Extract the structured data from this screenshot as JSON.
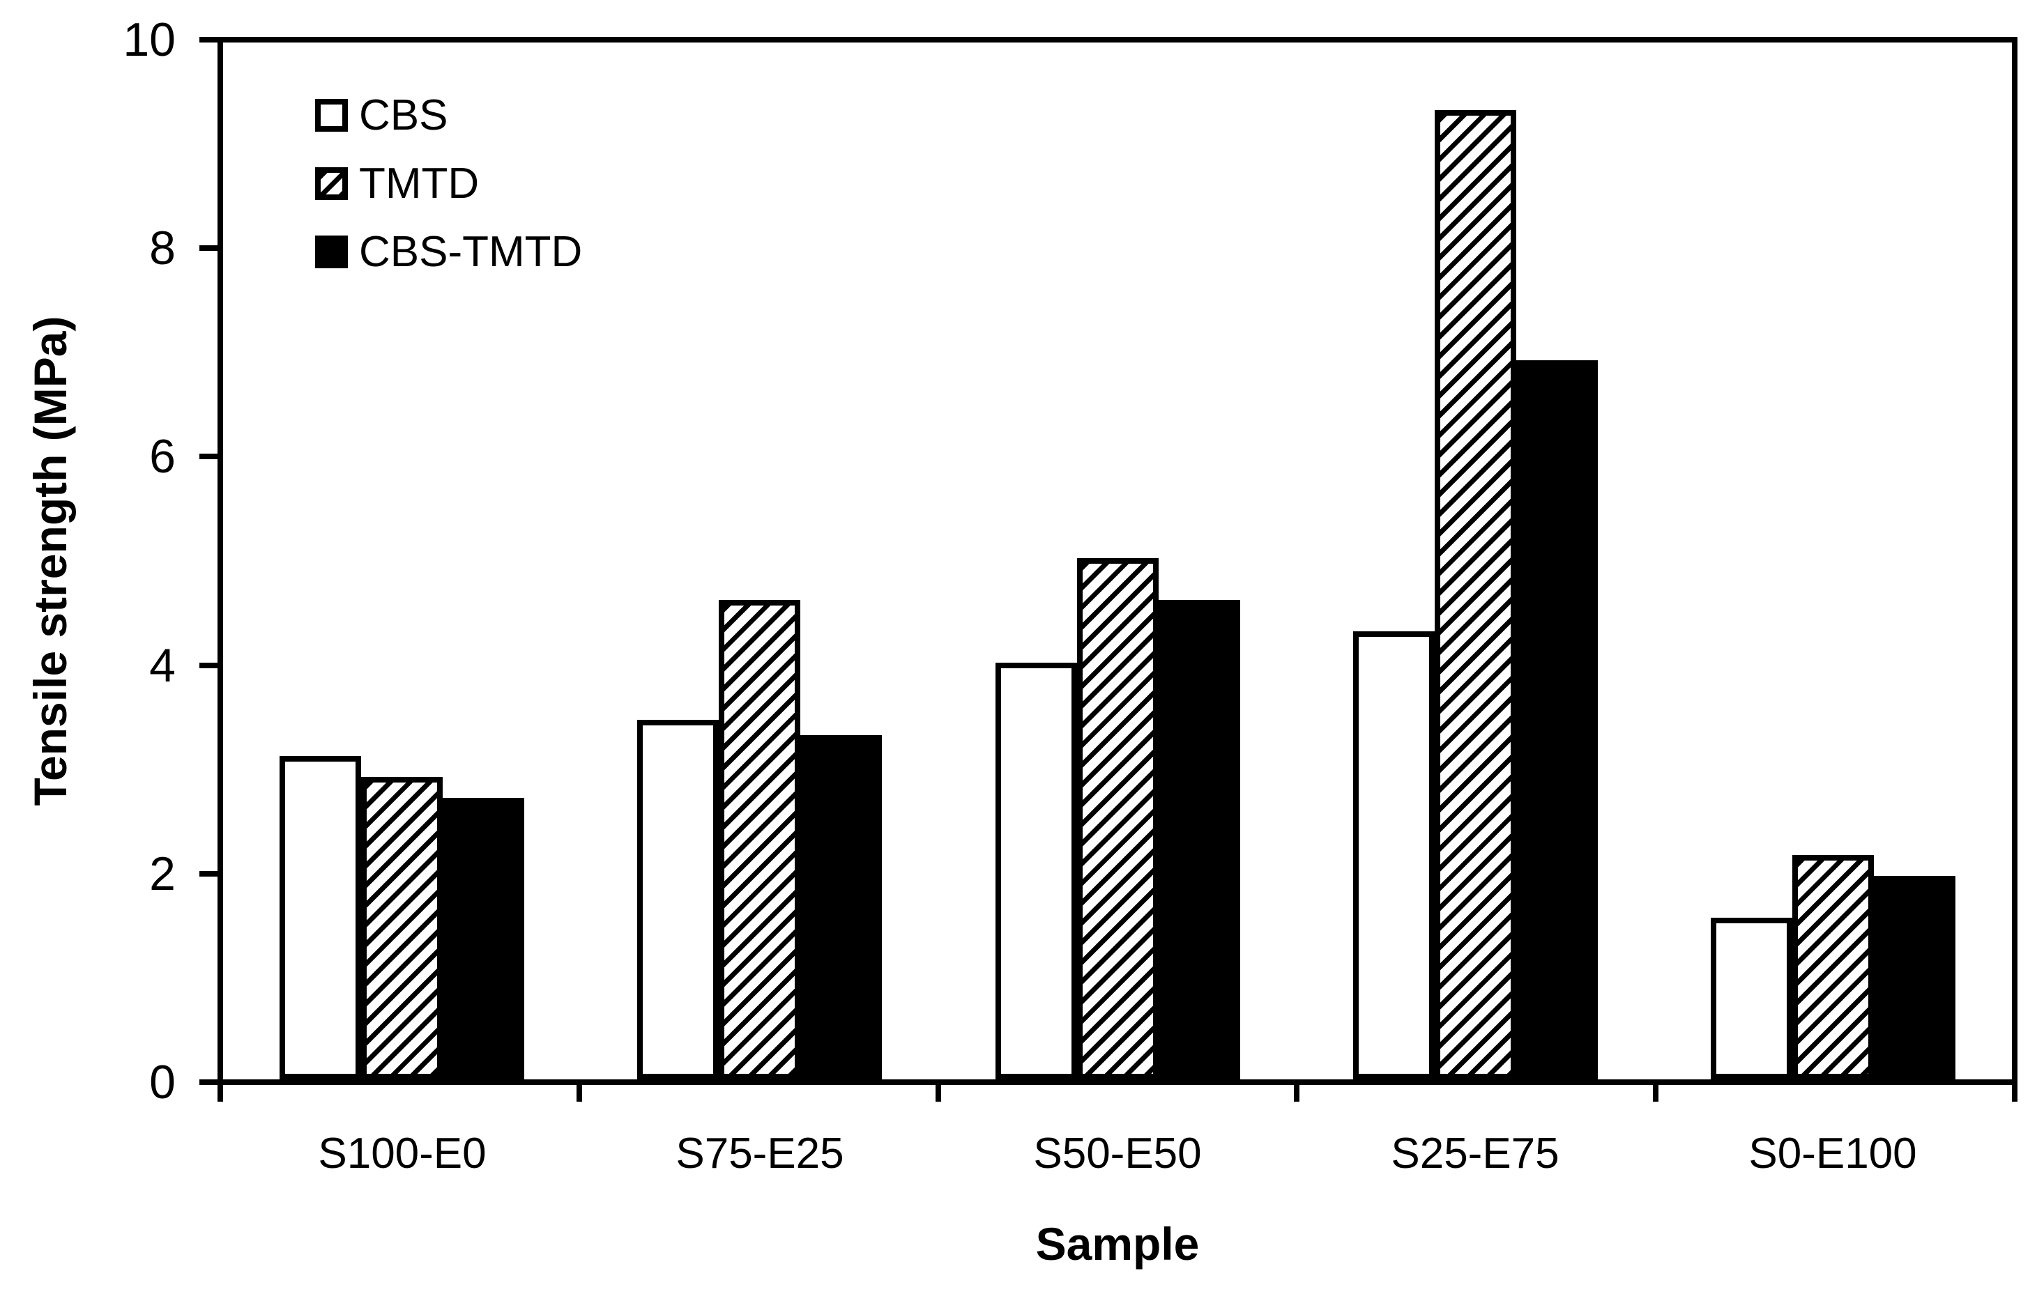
{
  "figure": {
    "background": "#ffffff",
    "foreground": "#000000"
  },
  "chart_data": {
    "type": "bar",
    "title": "",
    "categories": [
      "S100-E0",
      "S75-E25",
      "S50-E50",
      "S25-E75",
      "S0-E100"
    ],
    "series": [
      {
        "name": "CBS",
        "fill": "white",
        "values": [
          3.1,
          3.45,
          4.0,
          4.3,
          1.55
        ]
      },
      {
        "name": "TMTD",
        "fill": "hatched",
        "values": [
          2.9,
          4.6,
          5.0,
          9.3,
          2.15
        ]
      },
      {
        "name": "CBS-TMTD",
        "fill": "black",
        "values": [
          2.7,
          3.3,
          4.6,
          6.9,
          1.95
        ]
      }
    ],
    "xlabel": "Sample",
    "ylabel": "Tensile strength (MPa)",
    "ylim": [
      0,
      10
    ],
    "yticks": [
      0,
      2,
      4,
      6,
      8,
      10
    ],
    "legend_position": "top-left-inside",
    "grid": false
  }
}
